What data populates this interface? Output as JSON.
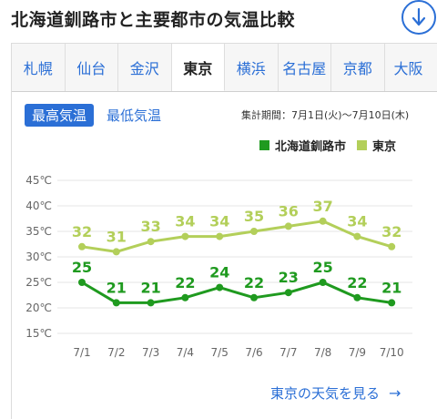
{
  "header": {
    "title": "北海道釧路市と主要都市の気温比較",
    "download_icon": "arrow-down-circle-icon"
  },
  "tabs": [
    {
      "label": "札幌",
      "active": false
    },
    {
      "label": "仙台",
      "active": false
    },
    {
      "label": "金沢",
      "active": false
    },
    {
      "label": "東京",
      "active": true
    },
    {
      "label": "横浜",
      "active": false
    },
    {
      "label": "名古屋",
      "active": false
    },
    {
      "label": "京都",
      "active": false
    },
    {
      "label": "大阪",
      "active": false
    }
  ],
  "toggle": {
    "max_label": "最高気温",
    "min_label": "最低気温",
    "selected": "max"
  },
  "period": "集計期間：7月1日(火)〜7月10日(木)",
  "link": {
    "label": "東京の天気を見る",
    "arrow": "→"
  },
  "colors": {
    "accent": "#2b6fd6",
    "series_kushiro": "#1f9a1f",
    "series_tokyo": "#b3cf5a",
    "grid": "#e4e4e4"
  },
  "chart_data": {
    "type": "line",
    "x": [
      "7/1",
      "7/2",
      "7/3",
      "7/4",
      "7/5",
      "7/6",
      "7/7",
      "7/8",
      "7/9",
      "7/10"
    ],
    "series": [
      {
        "name": "北海道釧路市",
        "values": [
          25,
          21,
          21,
          22,
          24,
          22,
          23,
          25,
          22,
          21
        ],
        "color": "#1f9a1f"
      },
      {
        "name": "東京",
        "values": [
          32,
          31,
          33,
          34,
          34,
          35,
          36,
          37,
          34,
          32
        ],
        "color": "#b3cf5a"
      }
    ],
    "y_ticks": [
      "45℃",
      "40℃",
      "35℃",
      "30℃",
      "25℃",
      "20℃",
      "15℃"
    ],
    "ylim": [
      15,
      45
    ],
    "grid": true,
    "legend": "top-right"
  }
}
